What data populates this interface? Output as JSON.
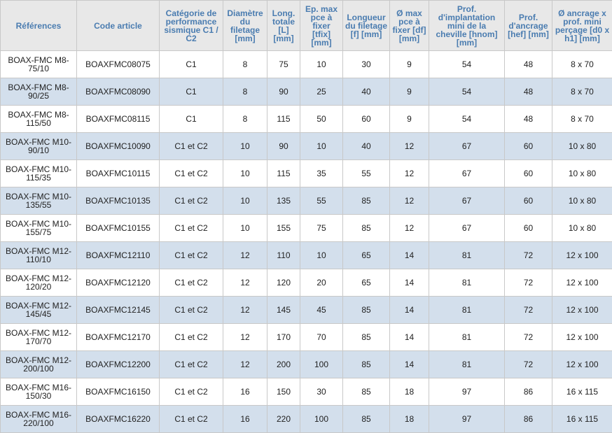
{
  "table": {
    "headers": [
      "Références",
      "Code article",
      "Catégorie de performance sismique C1 / C2",
      "Diamètre du filetage [mm]",
      "Long. totale [L] [mm]",
      "Ep. max pce à fixer [tfix] [mm]",
      "Longueur du filetage [f] [mm]",
      "Ø max pce à fixer [df] [mm]",
      "Prof. d'implantation mini de la cheville [hnom] [mm]",
      "Prof. d'ancrage [hef] [mm]",
      "Ø ancrage x prof. mini perçage [d0 x h1] [mm]"
    ],
    "rows": [
      [
        "BOAX-FMC M8-75/10",
        "BOAXFMC08075",
        "C1",
        8,
        75,
        10,
        30,
        9,
        54,
        48,
        "8 x 70"
      ],
      [
        "BOAX-FMC M8-90/25",
        "BOAXFMC08090",
        "C1",
        8,
        90,
        25,
        40,
        9,
        54,
        48,
        "8 x 70"
      ],
      [
        "BOAX-FMC M8-115/50",
        "BOAXFMC08115",
        "C1",
        8,
        115,
        50,
        60,
        9,
        54,
        48,
        "8 x 70"
      ],
      [
        "BOAX-FMC M10-90/10",
        "BOAXFMC10090",
        "C1 et C2",
        10,
        90,
        10,
        40,
        12,
        67,
        60,
        "10 x 80"
      ],
      [
        "BOAX-FMC M10-115/35",
        "BOAXFMC10115",
        "C1 et C2",
        10,
        115,
        35,
        55,
        12,
        67,
        60,
        "10 x 80"
      ],
      [
        "BOAX-FMC M10-135/55",
        "BOAXFMC10135",
        "C1 et C2",
        10,
        135,
        55,
        85,
        12,
        67,
        60,
        "10 x 80"
      ],
      [
        "BOAX-FMC M10-155/75",
        "BOAXFMC10155",
        "C1 et C2",
        10,
        155,
        75,
        85,
        12,
        67,
        60,
        "10 x 80"
      ],
      [
        "BOAX-FMC M12-110/10",
        "BOAXFMC12110",
        "C1 et C2",
        12,
        110,
        10,
        65,
        14,
        81,
        72,
        "12 x 100"
      ],
      [
        "BOAX-FMC M12-120/20",
        "BOAXFMC12120",
        "C1 et C2",
        12,
        120,
        20,
        65,
        14,
        81,
        72,
        "12 x 100"
      ],
      [
        "BOAX-FMC M12-145/45",
        "BOAXFMC12145",
        "C1 et C2",
        12,
        145,
        45,
        85,
        14,
        81,
        72,
        "12 x 100"
      ],
      [
        "BOAX-FMC M12-170/70",
        "BOAXFMC12170",
        "C1 et C2",
        12,
        170,
        70,
        85,
        14,
        81,
        72,
        "12 x 100"
      ],
      [
        "BOAX-FMC M12-200/100",
        "BOAXFMC12200",
        "C1 et C2",
        12,
        200,
        100,
        85,
        14,
        81,
        72,
        "12 x 100"
      ],
      [
        "BOAX-FMC M16-150/30",
        "BOAXFMC16150",
        "C1 et C2",
        16,
        150,
        30,
        85,
        18,
        97,
        86,
        "16 x 115"
      ],
      [
        "BOAX-FMC M16-220/100",
        "BOAXFMC16220",
        "C1 et C2",
        16,
        220,
        100,
        85,
        18,
        97,
        86,
        "16 x 115"
      ]
    ]
  }
}
